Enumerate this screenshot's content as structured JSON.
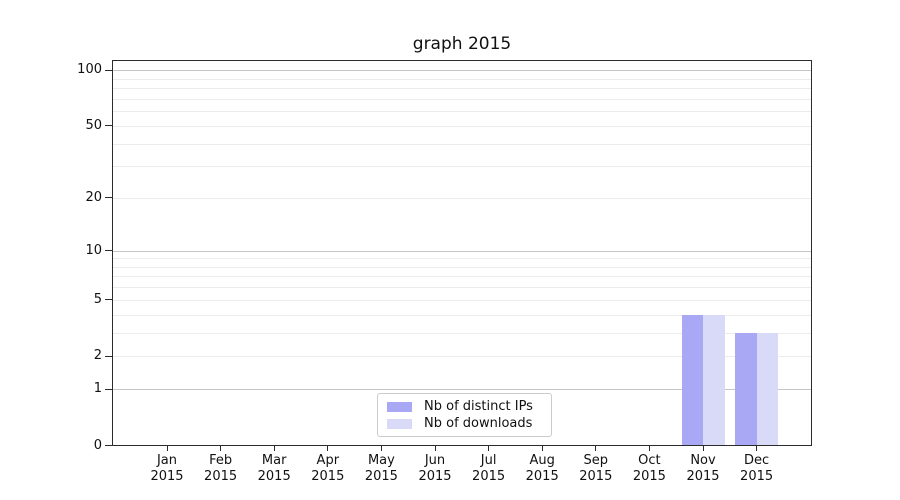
{
  "chart_data": {
    "type": "bar",
    "title": "graph 2015",
    "months": [
      "Jan",
      "Feb",
      "Mar",
      "Apr",
      "May",
      "Jun",
      "Jul",
      "Aug",
      "Sep",
      "Oct",
      "Nov",
      "Dec"
    ],
    "year": "2015",
    "series": [
      {
        "name": "Nb of distinct IPs",
        "color": "#a8a8f5",
        "values": [
          0,
          0,
          0,
          0,
          0,
          0,
          0,
          0,
          0,
          0,
          4,
          3
        ]
      },
      {
        "name": "Nb of downloads",
        "color": "#d9d9f8",
        "values": [
          0,
          0,
          0,
          0,
          0,
          0,
          0,
          0,
          0,
          0,
          4,
          3
        ]
      }
    ],
    "xlabel": "",
    "ylabel": "",
    "yscale": "log10(1+y)",
    "ylim": [
      0,
      113
    ],
    "yticks": [
      0,
      1,
      2,
      5,
      10,
      20,
      50,
      100
    ],
    "grid_major": [
      1,
      10,
      100
    ],
    "grid_minor": [
      2,
      3,
      4,
      5,
      6,
      7,
      8,
      9,
      20,
      30,
      40,
      50,
      60,
      70,
      80,
      90
    ],
    "grid": true,
    "legend_position": "lower center",
    "bar_width_ratio": 0.4,
    "colors": {
      "grid_major": "#c6c6c6",
      "grid_minor": "#ececec",
      "axis": "#2b2b2b",
      "text": "#111111",
      "legend_border": "#cccccc",
      "background": "#ffffff"
    }
  }
}
